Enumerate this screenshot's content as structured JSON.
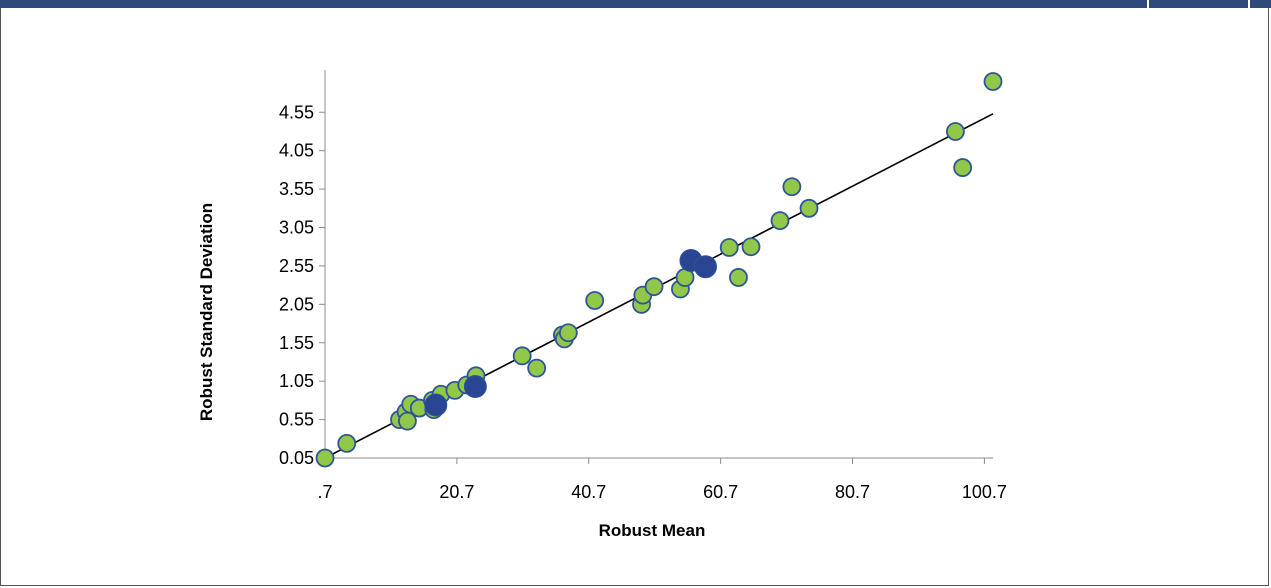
{
  "chart_data": {
    "type": "scatter",
    "xlabel": "Robust Mean",
    "ylabel": "Robust Standard Deviation",
    "x_ticks": [
      ".7",
      "20.7",
      "40.7",
      "60.7",
      "80.7",
      "100.7"
    ],
    "y_ticks": [
      "0.05",
      "0.55",
      "1.05",
      "1.55",
      "2.05",
      "2.55",
      "3.05",
      "3.55",
      "4.05",
      "4.55"
    ],
    "xlim": [
      0.7,
      102
    ],
    "ylim": [
      0.05,
      5.1
    ],
    "grid": false,
    "legend": "none",
    "colors": {
      "point_fill": "#92c84a",
      "point_stroke": "#2f5597",
      "highlight_fill": "#2a4593",
      "trend_line": "#000000",
      "header_bar": "#2e4a7d"
    },
    "series": [
      {
        "points": [
          [
            0.7,
            0.05
          ],
          [
            4.0,
            0.24
          ],
          [
            12.0,
            0.55
          ],
          [
            13.0,
            0.65
          ],
          [
            13.2,
            0.53
          ],
          [
            13.7,
            0.75
          ],
          [
            15.0,
            0.7
          ],
          [
            17.0,
            0.8
          ],
          [
            17.2,
            0.68
          ],
          [
            18.3,
            0.88
          ],
          [
            20.4,
            0.93
          ],
          [
            22.2,
            1.0
          ],
          [
            23.6,
            1.12
          ],
          [
            30.6,
            1.38
          ],
          [
            32.8,
            1.22
          ],
          [
            36.7,
            1.65
          ],
          [
            37.0,
            1.6
          ],
          [
            37.6,
            1.68
          ],
          [
            41.6,
            2.1
          ],
          [
            48.7,
            2.05
          ],
          [
            48.9,
            2.17
          ],
          [
            50.6,
            2.28
          ],
          [
            54.6,
            2.25
          ],
          [
            55.3,
            2.4
          ],
          [
            62.0,
            2.79
          ],
          [
            63.4,
            2.4
          ],
          [
            65.3,
            2.8
          ],
          [
            69.7,
            3.14
          ],
          [
            71.5,
            3.58
          ],
          [
            74.1,
            3.3
          ],
          [
            96.3,
            4.3
          ],
          [
            97.4,
            3.83
          ],
          [
            102.0,
            4.95
          ]
        ]
      },
      {
        "points": [
          [
            17.5,
            0.74
          ],
          [
            23.5,
            0.98
          ],
          [
            56.2,
            2.62
          ],
          [
            58.4,
            2.54
          ]
        ]
      }
    ],
    "trend_line": {
      "from": [
        0.7,
        0.05
      ],
      "to": [
        102.0,
        4.53
      ]
    }
  }
}
